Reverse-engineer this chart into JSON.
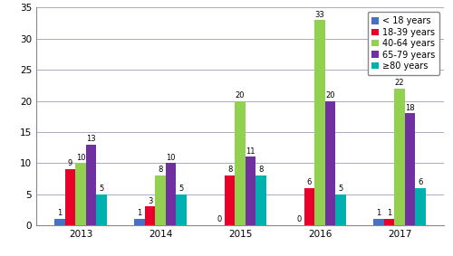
{
  "years": [
    "2013",
    "2014",
    "2015",
    "2016",
    "2017"
  ],
  "categories": [
    "< 18 years",
    "18-39 years",
    "40-64 years",
    "65-79 years",
    "≥80 years"
  ],
  "values": {
    "< 18 years": [
      1,
      1,
      0,
      0,
      1
    ],
    "18-39 years": [
      9,
      3,
      8,
      6,
      1
    ],
    "40-64 years": [
      10,
      8,
      20,
      33,
      22
    ],
    "65-79 years": [
      13,
      10,
      11,
      20,
      18
    ],
    "≥80 years": [
      5,
      5,
      8,
      5,
      6
    ]
  },
  "colors": {
    "< 18 years": "#4472C4",
    "18-39 years": "#E8002A",
    "40-64 years": "#92D050",
    "65-79 years": "#7030A0",
    "≥80 years": "#00B0B0"
  },
  "ylim": [
    0,
    35
  ],
  "yticks": [
    0,
    5,
    10,
    15,
    20,
    25,
    30,
    35
  ],
  "bar_width": 0.13,
  "label_fontsize": 6,
  "legend_fontsize": 7,
  "tick_fontsize": 7.5,
  "background_color": "#FFFFFF",
  "grid_color": "#AAAACC"
}
